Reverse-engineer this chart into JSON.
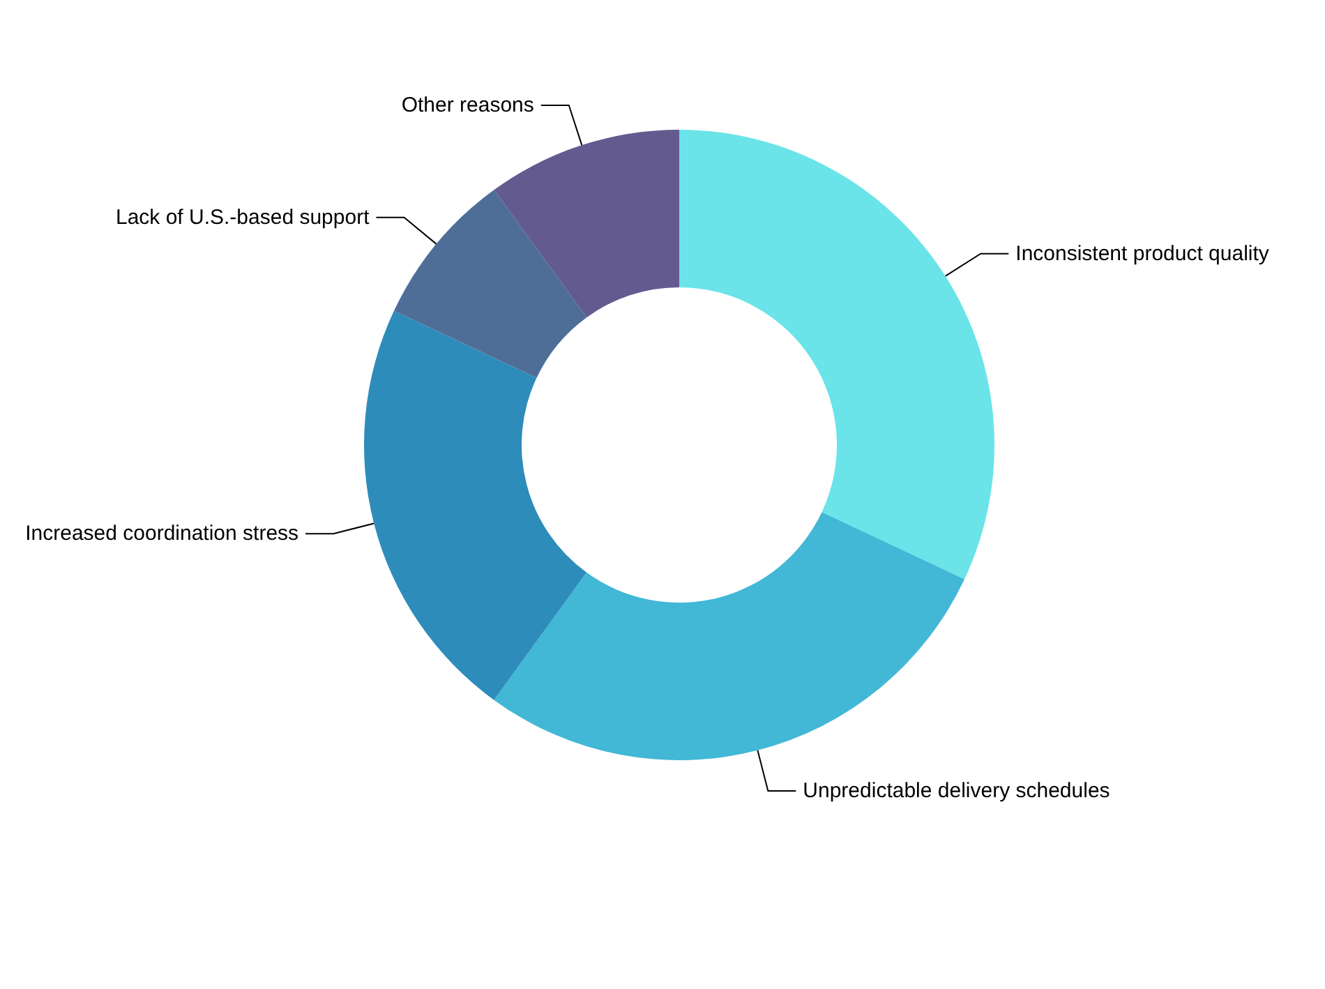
{
  "chart_data": {
    "type": "donut",
    "categories": [
      "Inconsistent product quality",
      "Unpredictable delivery schedules",
      "Increased coordination stress",
      "Lack of U.S.-based support",
      "Other reasons"
    ],
    "values": [
      32,
      28,
      22,
      8,
      10
    ],
    "colors": [
      "#6ae4e8",
      "#42b7d6",
      "#2e8cba",
      "#4e6e98",
      "#635b90"
    ],
    "legend": false
  }
}
